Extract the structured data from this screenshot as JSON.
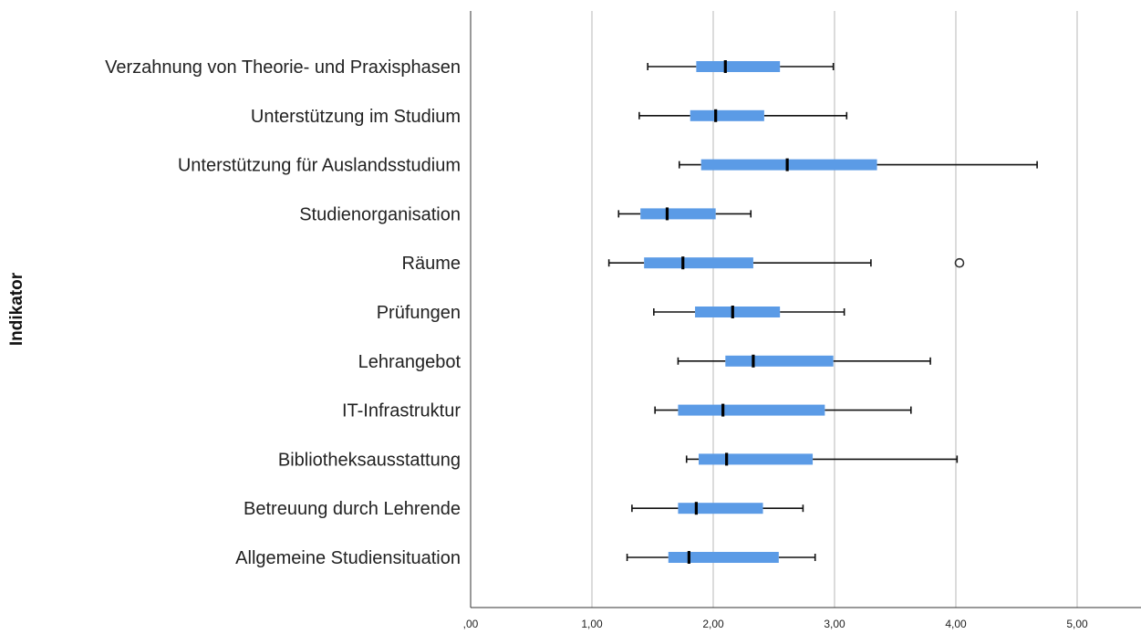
{
  "chart_data": {
    "type": "boxplot",
    "orientation": "horizontal",
    "ylabel": "Indikator",
    "xlabel": "",
    "xlim": [
      0,
      5.5
    ],
    "xticks": [
      0,
      1,
      2,
      3,
      4,
      5
    ],
    "xtick_labels": [
      ",00",
      "1,00",
      "2,00",
      "3,00",
      "4,00",
      "5,00"
    ],
    "grid": "vertical",
    "box_color": "#5b9be6",
    "categories": [
      "Verzahnung von Theorie- und Praxisphasen",
      "Unterstützung im Studium",
      "Unterstützung für Auslandsstudium",
      "Studienorganisation",
      "Räume",
      "Prüfungen",
      "Lehrangebot",
      "IT-Infrastruktur",
      "Bibliotheksausstattung",
      "Betreuung durch Lehrende",
      "Allgemeine Studiensituation"
    ],
    "boxes": [
      {
        "min": 1.46,
        "q1": 1.86,
        "median": 2.1,
        "q3": 2.55,
        "max": 2.99,
        "outliers": []
      },
      {
        "min": 1.39,
        "q1": 1.81,
        "median": 2.02,
        "q3": 2.42,
        "max": 3.1,
        "outliers": []
      },
      {
        "min": 1.72,
        "q1": 1.9,
        "median": 2.61,
        "q3": 3.35,
        "max": 4.67,
        "outliers": []
      },
      {
        "min": 1.22,
        "q1": 1.4,
        "median": 1.62,
        "q3": 2.02,
        "max": 2.31,
        "outliers": []
      },
      {
        "min": 1.14,
        "q1": 1.43,
        "median": 1.75,
        "q3": 2.33,
        "max": 3.3,
        "outliers": [
          4.03
        ]
      },
      {
        "min": 1.51,
        "q1": 1.85,
        "median": 2.16,
        "q3": 2.55,
        "max": 3.08,
        "outliers": []
      },
      {
        "min": 1.71,
        "q1": 2.1,
        "median": 2.33,
        "q3": 2.99,
        "max": 3.79,
        "outliers": []
      },
      {
        "min": 1.52,
        "q1": 1.71,
        "median": 2.08,
        "q3": 2.92,
        "max": 3.63,
        "outliers": []
      },
      {
        "min": 1.78,
        "q1": 1.88,
        "median": 2.11,
        "q3": 2.82,
        "max": 4.01,
        "outliers": []
      },
      {
        "min": 1.33,
        "q1": 1.71,
        "median": 1.86,
        "q3": 2.41,
        "max": 2.74,
        "outliers": []
      },
      {
        "min": 1.29,
        "q1": 1.63,
        "median": 1.8,
        "q3": 2.54,
        "max": 2.84,
        "outliers": []
      }
    ]
  }
}
